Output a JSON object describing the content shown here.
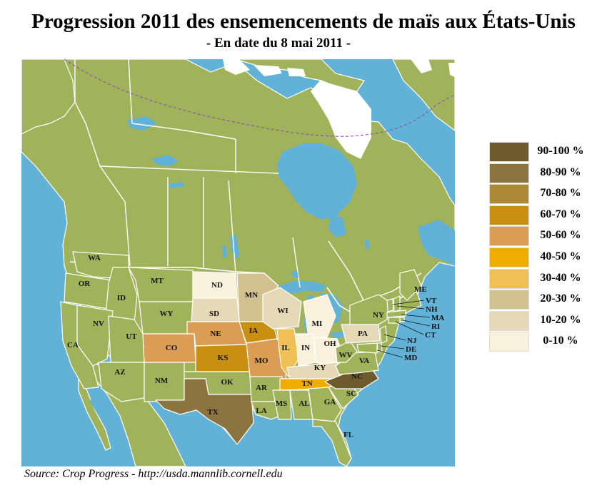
{
  "title": "Progression 2011 des ensemencements de maïs aux États-Unis",
  "subtitle": "-  En date du 8 mai 2011  -",
  "source": "Source: Crop Progress - http://usda.mannlib.cornell.edu",
  "colors": {
    "ocean": "#62b2d8",
    "land": "#a1b35a",
    "land_border": "#ffffff",
    "lakes": "#62b2d8",
    "ice": "#ffffff",
    "boundary_line": "#8a4fb0"
  },
  "legend": [
    {
      "label": "90-100 %",
      "color": "#6e5a2c"
    },
    {
      "label": "80-90 %",
      "color": "#8c7440"
    },
    {
      "label": "70-80 %",
      "color": "#ab8834"
    },
    {
      "label": "60-70 %",
      "color": "#c98f10"
    },
    {
      "label": "50-60 %",
      "color": "#db9c54"
    },
    {
      "label": "40-50 %",
      "color": "#f0ac02"
    },
    {
      "label": "30-40 %",
      "color": "#f0c056"
    },
    {
      "label": "20-30 %",
      "color": "#d4c190"
    },
    {
      "label": "10-20 %",
      "color": "#e6d9b7"
    },
    {
      "label": "0-10 %",
      "color": "#faf1dc"
    }
  ],
  "states": [
    {
      "code": "WA",
      "category": "none"
    },
    {
      "code": "OR",
      "category": "none"
    },
    {
      "code": "ID",
      "category": "none"
    },
    {
      "code": "MT",
      "category": "none"
    },
    {
      "code": "WY",
      "category": "none"
    },
    {
      "code": "NV",
      "category": "none"
    },
    {
      "code": "UT",
      "category": "none"
    },
    {
      "code": "CA",
      "category": "none"
    },
    {
      "code": "AZ",
      "category": "none"
    },
    {
      "code": "NM",
      "category": "none"
    },
    {
      "code": "CO",
      "category": "50-60 %"
    },
    {
      "code": "ND",
      "category": "0-10 %"
    },
    {
      "code": "SD",
      "category": "10-20 %"
    },
    {
      "code": "NE",
      "category": "50-60 %"
    },
    {
      "code": "KS",
      "category": "60-70 %"
    },
    {
      "code": "OK",
      "category": "none"
    },
    {
      "code": "TX",
      "category": "80-90 %"
    },
    {
      "code": "MN",
      "category": "20-30 %"
    },
    {
      "code": "IA",
      "category": "60-70 %"
    },
    {
      "code": "MO",
      "category": "50-60 %"
    },
    {
      "code": "AR",
      "category": "none"
    },
    {
      "code": "LA",
      "category": "none"
    },
    {
      "code": "WI",
      "category": "10-20 %"
    },
    {
      "code": "IL",
      "category": "30-40 %"
    },
    {
      "code": "MI",
      "category": "0-10 %"
    },
    {
      "code": "IN",
      "category": "0-10 %"
    },
    {
      "code": "OH",
      "category": "0-10 %"
    },
    {
      "code": "KY",
      "category": "10-20 %"
    },
    {
      "code": "TN",
      "category": "40-50 %"
    },
    {
      "code": "MS",
      "category": "none"
    },
    {
      "code": "AL",
      "category": "none"
    },
    {
      "code": "GA",
      "category": "none"
    },
    {
      "code": "FL",
      "category": "none"
    },
    {
      "code": "SC",
      "category": "none"
    },
    {
      "code": "NC",
      "category": "90-100 %"
    },
    {
      "code": "VA",
      "category": "none"
    },
    {
      "code": "WV",
      "category": "none"
    },
    {
      "code": "PA",
      "category": "10-20 %"
    },
    {
      "code": "NY",
      "category": "none"
    },
    {
      "code": "ME",
      "category": "none"
    },
    {
      "code": "VT",
      "category": "none"
    },
    {
      "code": "NH",
      "category": "none"
    },
    {
      "code": "MA",
      "category": "none"
    },
    {
      "code": "RI",
      "category": "none"
    },
    {
      "code": "CT",
      "category": "none"
    },
    {
      "code": "NJ",
      "category": "none"
    },
    {
      "code": "DE",
      "category": "none"
    },
    {
      "code": "MD",
      "category": "none"
    }
  ]
}
